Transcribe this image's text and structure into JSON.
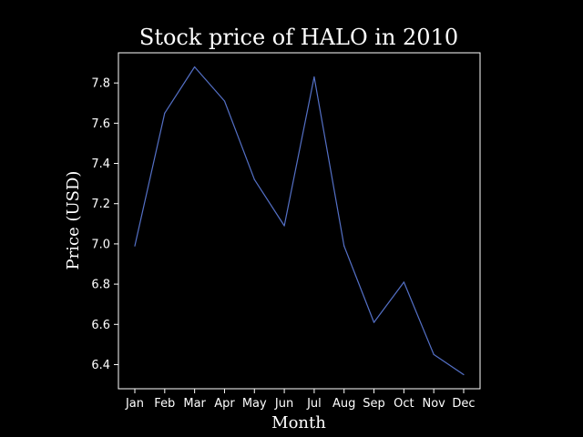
{
  "chart_data": {
    "type": "line",
    "title": "Stock price of HALO in 2010",
    "xlabel": "Month",
    "ylabel": "Price (USD)",
    "categories": [
      "Jan",
      "Feb",
      "Mar",
      "Apr",
      "May",
      "Jun",
      "Jul",
      "Aug",
      "Sep",
      "Oct",
      "Nov",
      "Dec"
    ],
    "series": [
      {
        "values": [
          6.99,
          7.65,
          7.88,
          7.71,
          7.32,
          7.09,
          7.83,
          6.99,
          6.61,
          6.81,
          6.45,
          6.35
        ]
      }
    ],
    "ylim": [
      6.28,
      7.95
    ],
    "yticks": [
      6.4,
      6.6,
      6.8,
      7.0,
      7.2,
      7.4,
      7.6,
      7.8
    ],
    "ytick_labels": [
      "6.4",
      "6.6",
      "6.8",
      "7.0",
      "7.2",
      "7.4",
      "7.6",
      "7.8"
    ],
    "grid": false,
    "colors": {
      "background": "#000000",
      "line": "#5470c6",
      "axes": "#ffffff",
      "text": "#ffffff"
    }
  }
}
